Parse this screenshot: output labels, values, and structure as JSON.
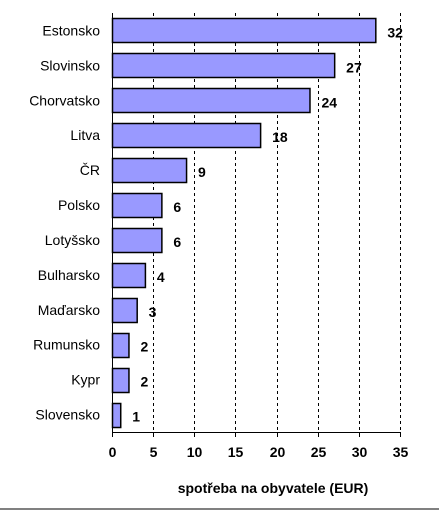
{
  "chart_data": {
    "type": "bar",
    "orientation": "horizontal",
    "categories": [
      "Estonsko",
      "Slovinsko",
      "Chorvatsko",
      "Litva",
      "ČR",
      "Polsko",
      "Lotyšsko",
      "Bulharsko",
      "Maďarsko",
      "Rumunsko",
      "Kypr",
      "Slovensko"
    ],
    "values": [
      32,
      27,
      24,
      18,
      9,
      6,
      6,
      4,
      3,
      2,
      2,
      1
    ],
    "title": "",
    "xlabel": "spotřeba na obyvatele (EUR)",
    "ylabel": "",
    "xlim": [
      0,
      35
    ],
    "xticks": [
      0,
      5,
      10,
      15,
      20,
      25,
      30,
      35
    ],
    "grid": "vertical dashed",
    "legend": "none",
    "bar_color": "#9999ff",
    "bar_border_color": "#000000"
  }
}
